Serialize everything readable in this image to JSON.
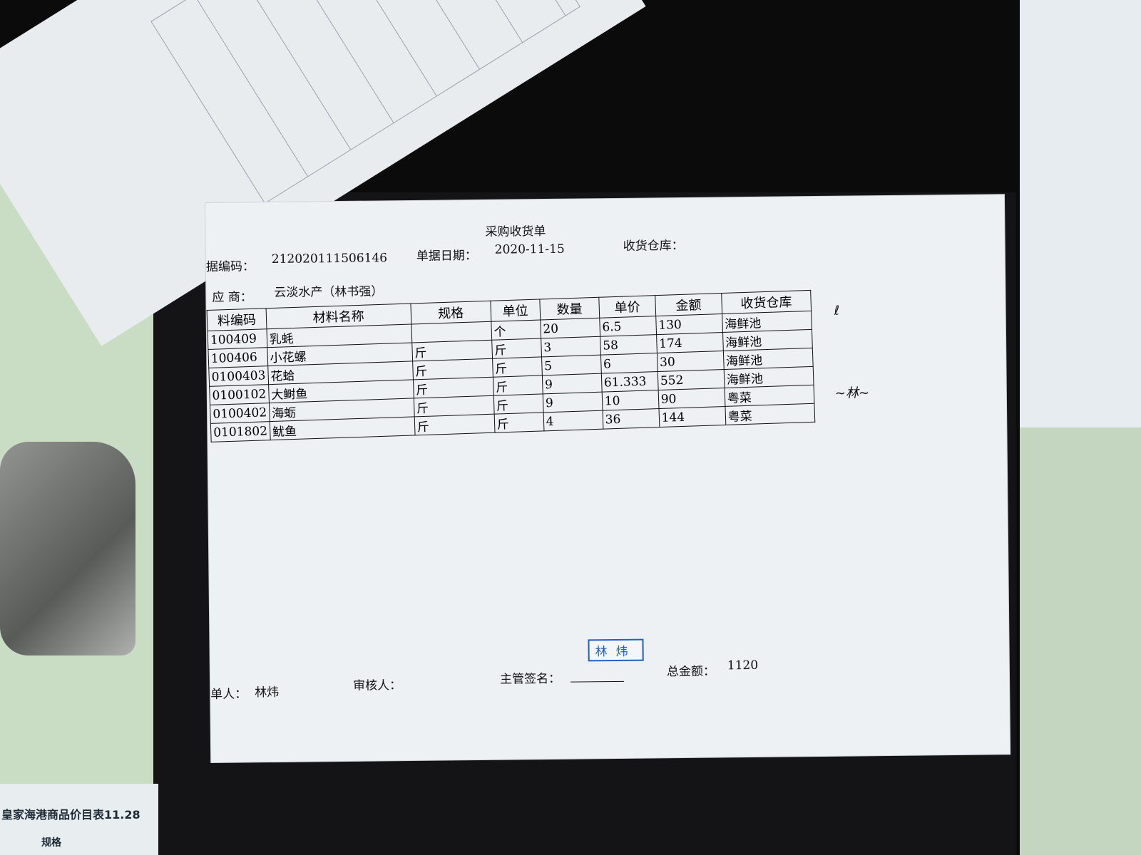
{
  "background": {
    "price_list_title": "皇家海港商品价目表11.28",
    "price_list_col": "规格"
  },
  "document": {
    "title": "采购收货单",
    "doc_no_label": "据编码：",
    "doc_no": "212020111506146",
    "date_label": "单据日期：",
    "date": "2020-11-15",
    "warehouse_label": "收货仓库：",
    "supplier_label": "应 商：",
    "supplier": "云淡水产（林书强）",
    "columns": [
      "料编码",
      "材料名称",
      "规格",
      "单位",
      "数量",
      "单价",
      "金额",
      "收货仓库"
    ],
    "rows": [
      {
        "code": "100409",
        "name": "乳蚝",
        "spec": "",
        "unit": "个",
        "qty": "20",
        "price": "6.5",
        "amount": "130",
        "warehouse": "海鲜池"
      },
      {
        "code": "100406",
        "name": "小花螺",
        "spec": "斤",
        "unit": "斤",
        "qty": "3",
        "price": "58",
        "amount": "174",
        "warehouse": "海鲜池"
      },
      {
        "code": "0100403",
        "name": "花蛤",
        "spec": "斤",
        "unit": "斤",
        "qty": "5",
        "price": "6",
        "amount": "30",
        "warehouse": "海鲜池"
      },
      {
        "code": "0100102",
        "name": "大鲥鱼",
        "spec": "斤",
        "unit": "斤",
        "qty": "9",
        "price": "61.333",
        "amount": "552",
        "warehouse": "海鲜池"
      },
      {
        "code": "0100402",
        "name": "海蛎",
        "spec": "斤",
        "unit": "斤",
        "qty": "9",
        "price": "10",
        "amount": "90",
        "warehouse": "粤菜"
      },
      {
        "code": "0101802",
        "name": "鱿鱼",
        "spec": "斤",
        "unit": "斤",
        "qty": "4",
        "price": "36",
        "amount": "144",
        "warehouse": "粤菜"
      }
    ],
    "maker_label": "单人：",
    "maker": "林炜",
    "reviewer_label": "审核人：",
    "supervisor_label": "主管签名：",
    "stamp": "林炜",
    "total_label": "总金额：",
    "total": "1120",
    "stamp_color": "#1f5fc9"
  }
}
